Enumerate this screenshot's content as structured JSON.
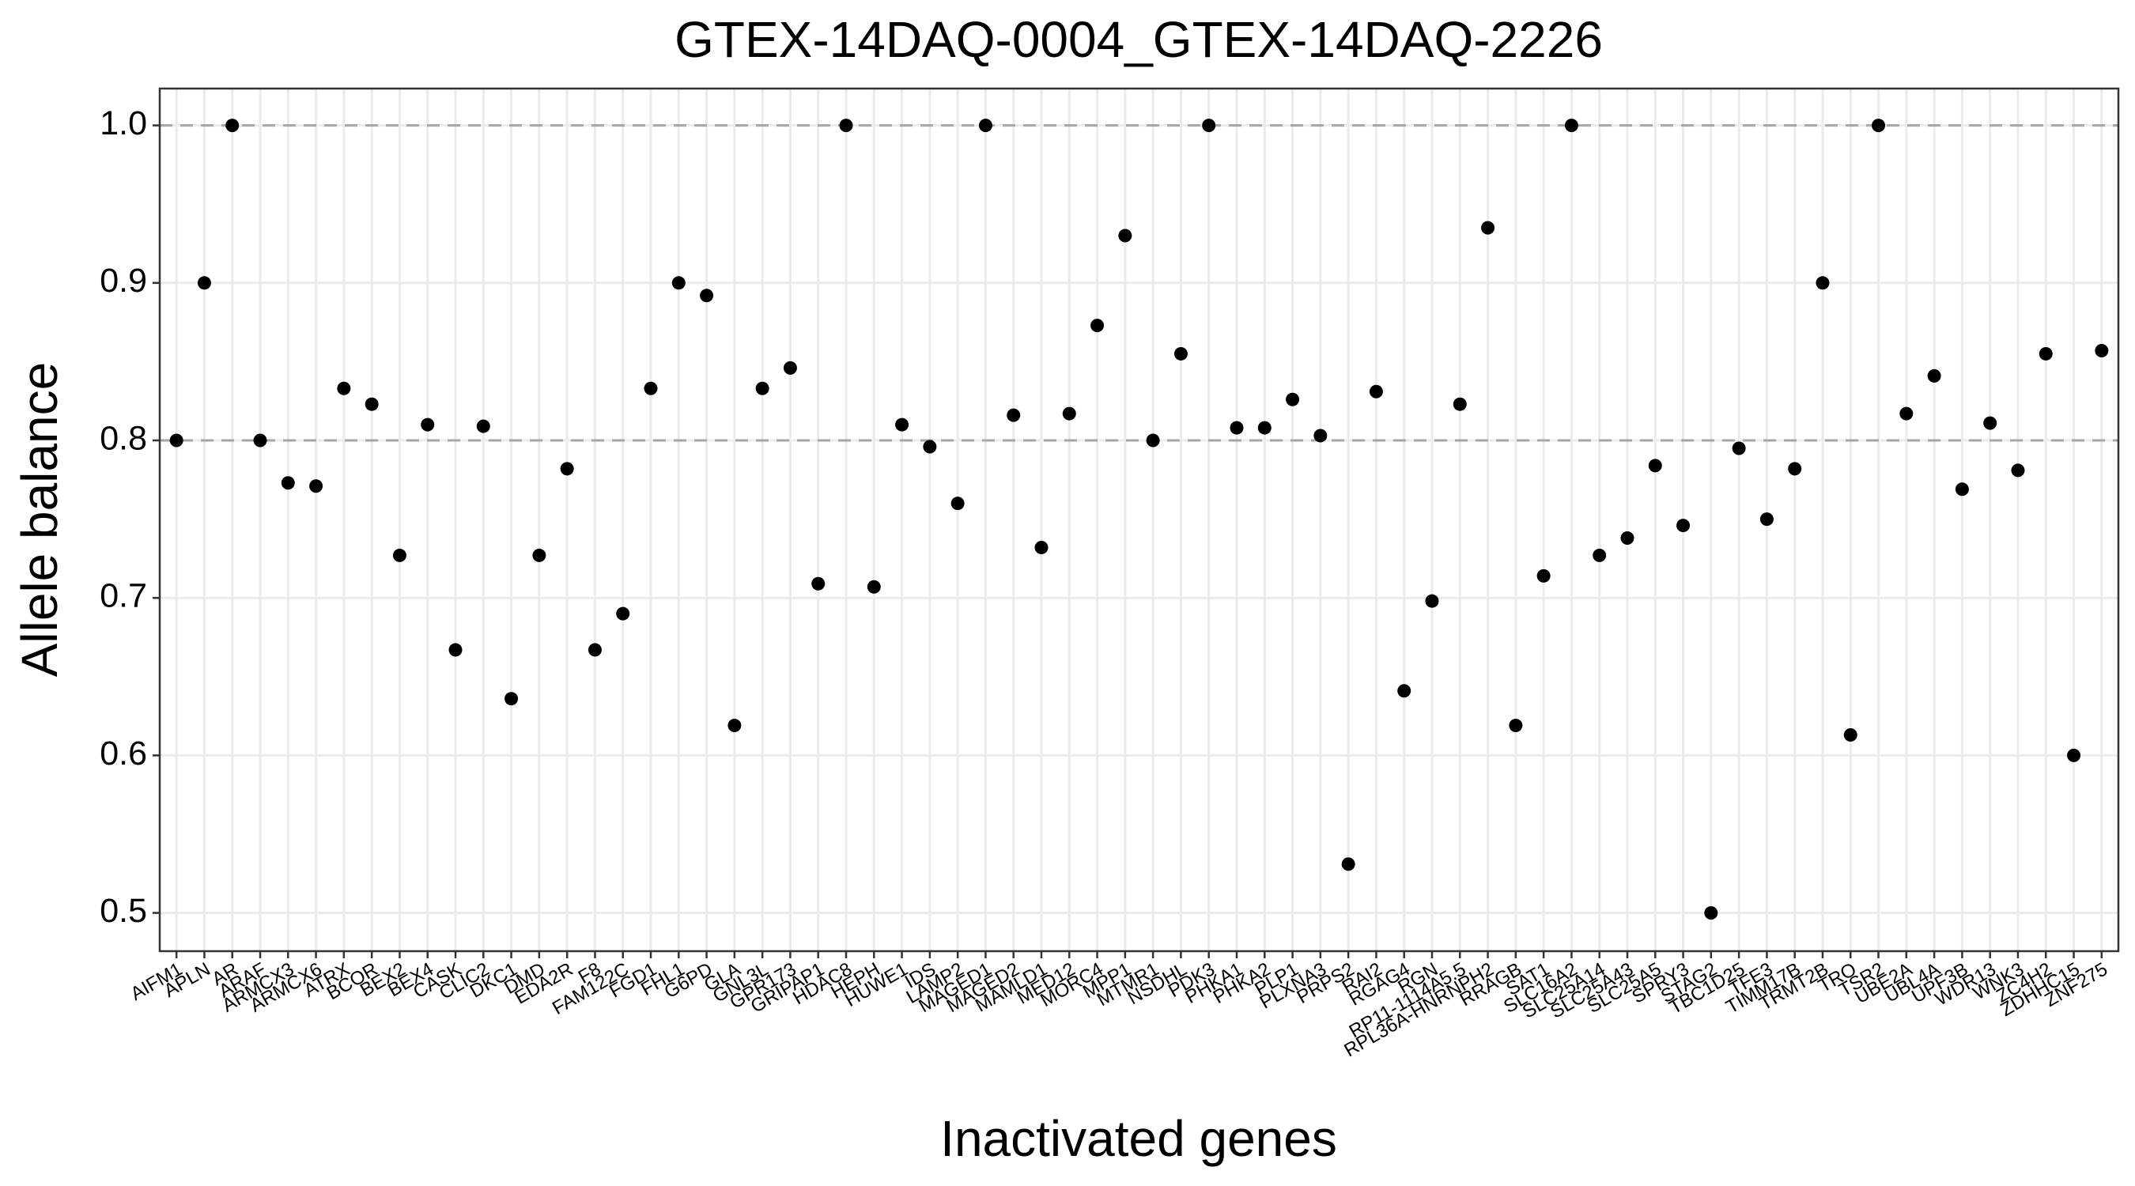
{
  "chart_data": {
    "type": "scatter",
    "title": "GTEX-14DAQ-0004_GTEX-14DAQ-2226",
    "x_label": "Inactivated genes",
    "y_label": "Allele balance",
    "color": "#000000",
    "categories": [
      "AIFM1",
      "APLN",
      "AR",
      "ARAF",
      "ARMCX3",
      "ARMCX6",
      "ATRX",
      "BCOR",
      "BEX2",
      "BEX4",
      "CASK",
      "CLIC2",
      "DKC1",
      "DMD",
      "EDA2R",
      "F8",
      "FAM122C",
      "FGD1",
      "FHL1",
      "G6PD",
      "GLA",
      "GNL3L",
      "GPR173",
      "GRIPAP1",
      "HDAC8",
      "HEPH",
      "HUWE1",
      "IDS",
      "LAMP2",
      "MAGED1",
      "MAGED2",
      "MAMLD1",
      "MED12",
      "MORC4",
      "MPP1",
      "MTMR1",
      "NSDHL",
      "PDK3",
      "PHKA1",
      "PHKA2",
      "PLP1",
      "PLXNA3",
      "PRPS2",
      "RAI2",
      "RGAG4",
      "RGN",
      "RP11-1114A5.5",
      "RPL36A-HNRNPH2",
      "RRAGB",
      "SAT1",
      "SLC16A2",
      "SLC25A14",
      "SLC25A43",
      "SLC25A5",
      "SPRY3",
      "STAG2",
      "TBC1D25",
      "TFE3",
      "TIMM17B",
      "TRMT2B",
      "TRO",
      "TSR2",
      "UBE2A",
      "UBL4A",
      "UPF3B",
      "WDR13",
      "WNK3",
      "ZC4H2",
      "ZDHHC15",
      "ZNF275"
    ],
    "values": [
      0.8,
      0.9,
      1.0,
      0.8,
      0.773,
      0.771,
      0.833,
      0.823,
      0.727,
      0.81,
      0.667,
      0.809,
      0.636,
      0.727,
      0.782,
      0.667,
      0.69,
      0.833,
      0.9,
      0.892,
      0.619,
      0.833,
      0.846,
      0.709,
      1.0,
      0.707,
      0.81,
      0.796,
      0.76,
      1.0,
      0.816,
      0.732,
      0.817,
      0.873,
      0.93,
      0.8,
      0.855,
      1.0,
      0.808,
      0.808,
      0.826,
      0.803,
      0.531,
      0.831,
      0.641,
      0.698,
      0.823,
      0.935,
      0.619,
      0.714,
      1.0,
      0.727,
      0.738,
      0.784,
      0.746,
      0.5,
      0.795,
      0.75,
      0.782,
      0.9,
      0.613,
      1.0,
      0.817,
      0.841,
      0.769,
      0.811,
      0.781,
      0.855,
      0.6,
      0.857
    ],
    "ylim": [
      0.4757,
      1.0234
    ],
    "yticks": [
      0.5,
      0.6,
      0.7,
      0.8,
      0.9,
      {
        "value": 1,
        "label": "1.0"
      }
    ],
    "hlines": [
      0.8,
      1.0
    ],
    "grid": true
  }
}
